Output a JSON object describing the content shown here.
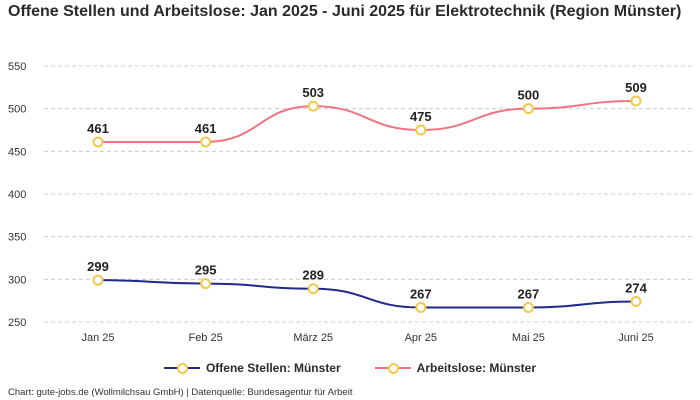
{
  "title": "Offene Stellen und Arbeitslose: Jan 2025 - Juni 2025 für Elektrotechnik (Region Münster)",
  "source": "Chart: gute-jobs.de (Wollmilchsau GmbH) | Datenquelle: Bundesagentur für Arbeit",
  "colors": {
    "offene": "#1f2a8a",
    "arbeitslose": "#f07480",
    "marker_border": "#f2c94c",
    "grid": "#cccccc"
  },
  "chart_data": {
    "type": "line",
    "categories": [
      "Jan 25",
      "Feb 25",
      "März 25",
      "Apr 25",
      "Mai 25",
      "Juni 25"
    ],
    "y_ticks": [
      250,
      300,
      350,
      400,
      450,
      500,
      550
    ],
    "ylim": [
      250,
      550
    ],
    "grid": true,
    "legend_position": "bottom",
    "series": [
      {
        "name": "Offene Stellen: Münster",
        "color": "#1f2a8a",
        "values": [
          299,
          295,
          289,
          267,
          267,
          274
        ]
      },
      {
        "name": "Arbeitslose: Münster",
        "color": "#f07480",
        "values": [
          461,
          461,
          503,
          475,
          500,
          509
        ]
      }
    ]
  }
}
